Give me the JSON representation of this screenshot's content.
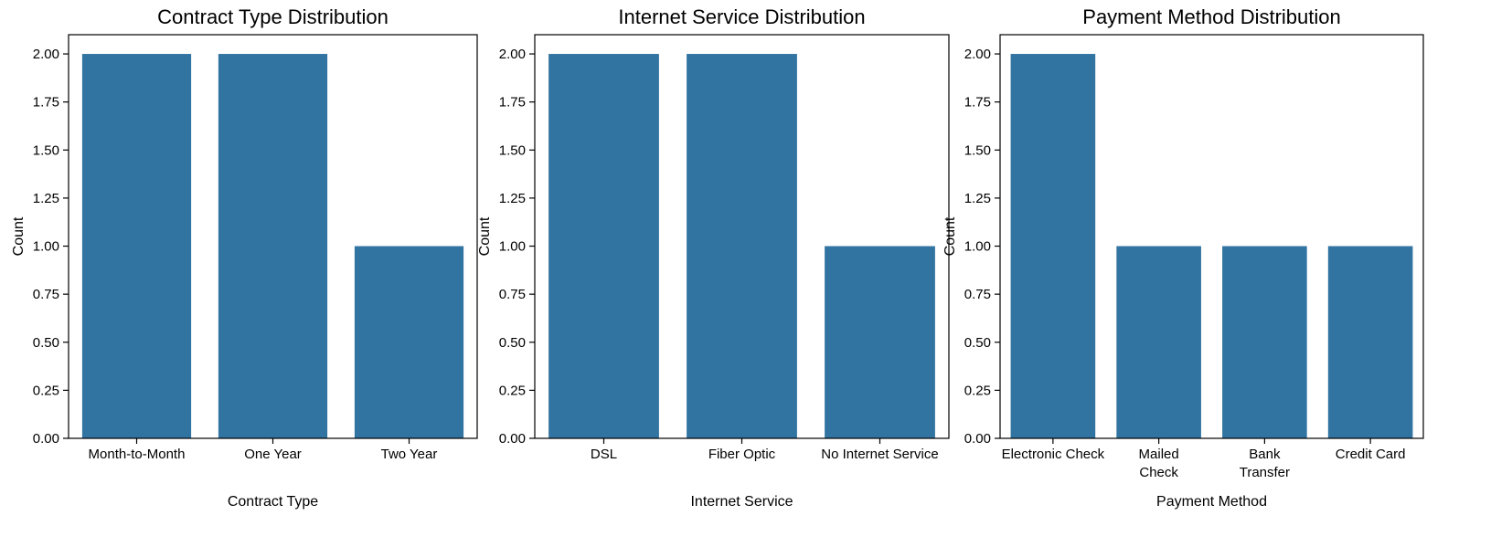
{
  "theme": {
    "bar_color": "#3274a1",
    "background": "#ffffff"
  },
  "chart_data": [
    {
      "type": "bar",
      "title": "Contract Type Distribution",
      "xlabel": "Contract Type",
      "ylabel": "Count",
      "categories": [
        [
          "Month-to-Month"
        ],
        [
          "One Year"
        ],
        [
          "Two Year"
        ]
      ],
      "values": [
        2,
        2,
        1
      ],
      "ylim": [
        0,
        2.1
      ],
      "yticks": [
        "0.00",
        "0.25",
        "0.50",
        "0.75",
        "1.00",
        "1.25",
        "1.50",
        "1.75",
        "2.00"
      ],
      "grid": false
    },
    {
      "type": "bar",
      "title": "Internet Service Distribution",
      "xlabel": "Internet Service",
      "ylabel": "Count",
      "categories": [
        [
          "DSL"
        ],
        [
          "Fiber Optic"
        ],
        [
          "No Internet Service"
        ]
      ],
      "values": [
        2,
        2,
        1
      ],
      "ylim": [
        0,
        2.1
      ],
      "yticks": [
        "0.00",
        "0.25",
        "0.50",
        "0.75",
        "1.00",
        "1.25",
        "1.50",
        "1.75",
        "2.00"
      ],
      "grid": false
    },
    {
      "type": "bar",
      "title": "Payment Method Distribution",
      "xlabel": "Payment Method",
      "ylabel": "Count",
      "categories": [
        [
          "Electronic Check"
        ],
        [
          "Mailed",
          "Check"
        ],
        [
          "Bank",
          "Transfer"
        ],
        [
          "Credit Card"
        ]
      ],
      "values": [
        2,
        1,
        1,
        1
      ],
      "ylim": [
        0,
        2.1
      ],
      "yticks": [
        "0.00",
        "0.25",
        "0.50",
        "0.75",
        "1.00",
        "1.25",
        "1.50",
        "1.75",
        "2.00"
      ],
      "grid": false
    }
  ]
}
